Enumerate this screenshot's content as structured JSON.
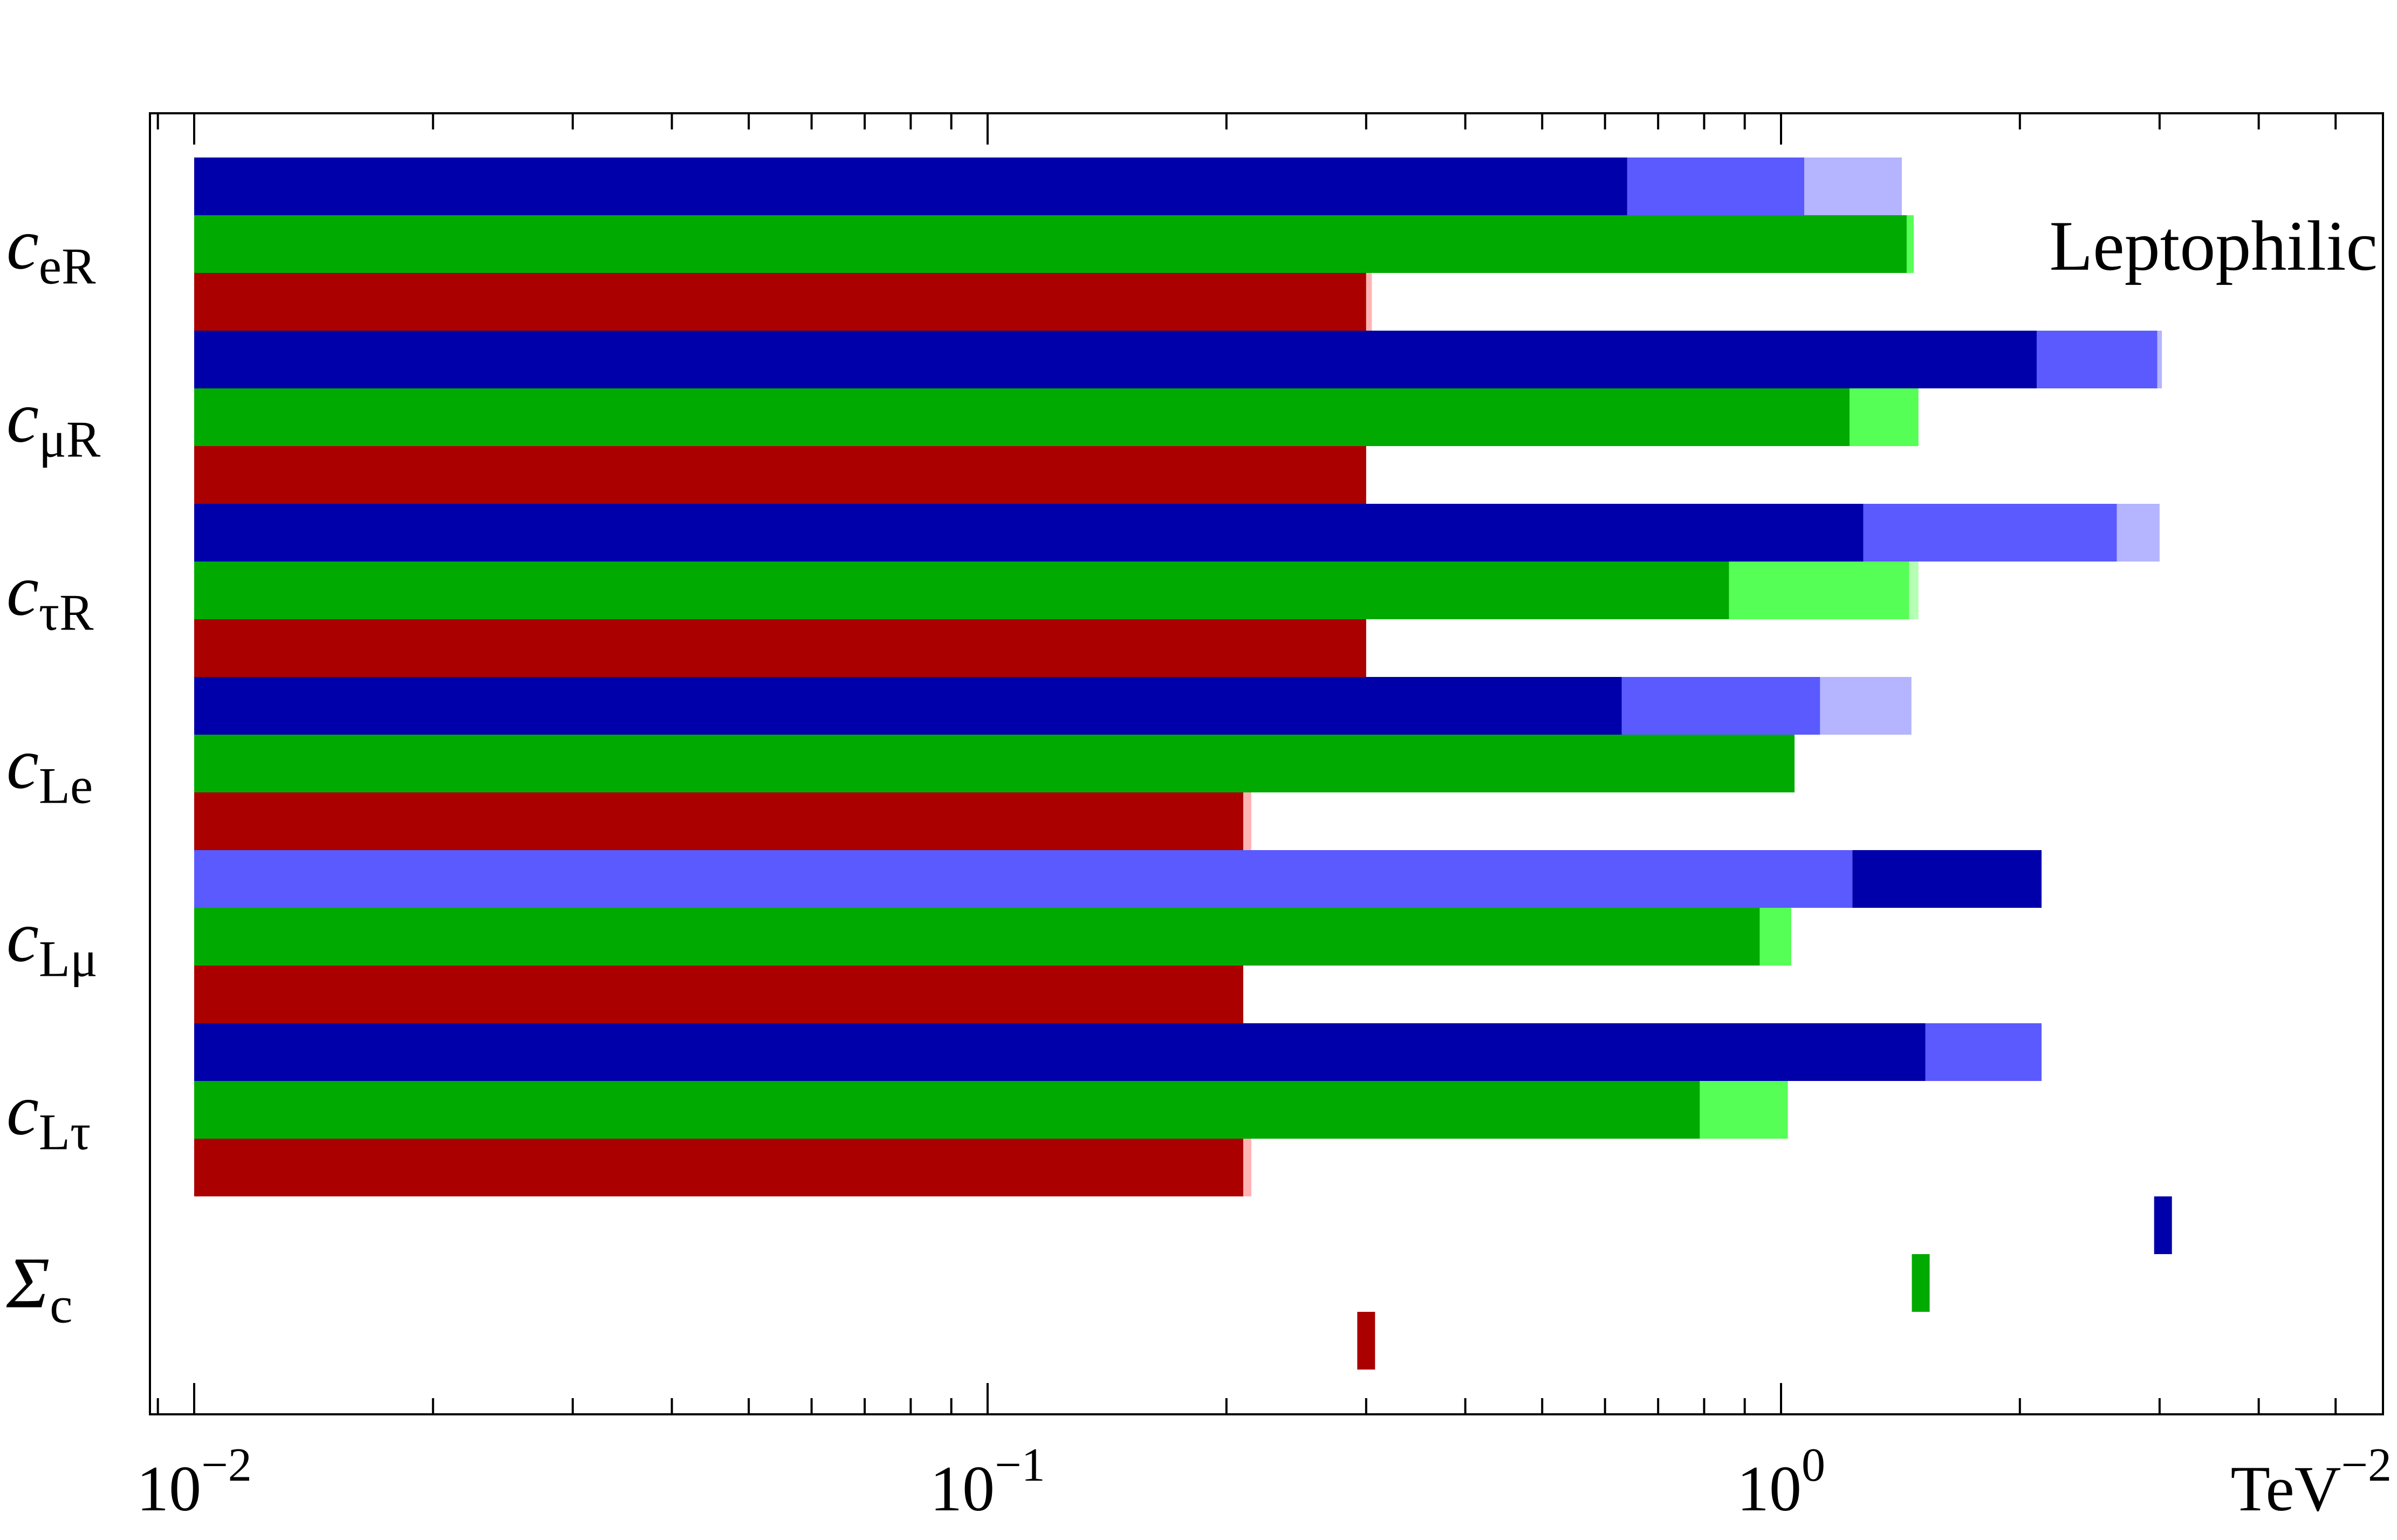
{
  "chart_data": {
    "type": "bar",
    "orientation": "horizontal",
    "annotation": "Leptophilic",
    "x_axis": {
      "scale": "log",
      "xlim": [
        0.009,
        13
      ],
      "bar_base": 0.01,
      "tick_labels": [
        {
          "value": 0.01,
          "base": "10",
          "exp": "−2"
        },
        {
          "value": 0.1,
          "base": "10",
          "exp": "−1"
        },
        {
          "value": 1,
          "base": "10",
          "exp": "0"
        }
      ],
      "unit": {
        "base": "TeV",
        "exp": "−2"
      }
    },
    "colors": {
      "blue_dark": "#0000aa",
      "blue_mid": "#5a5aff",
      "blue_light": "#b4b4ff",
      "green_dark": "#00aa00",
      "green_light": "#55ff55",
      "green_faint": "#b4ffb4",
      "red_dark": "#aa0000",
      "red_light": "#ffb4b4"
    },
    "rows": [
      {
        "label_main": "c",
        "label_sub": "eR",
        "bars": [
          {
            "series": "blue",
            "segments": [
              {
                "to": 0.64,
                "color": "#0000aa"
              },
              {
                "to": 1.07,
                "color": "#5a5aff"
              },
              {
                "to": 1.42,
                "color": "#b4b4ff"
              }
            ]
          },
          {
            "series": "green",
            "segments": [
              {
                "to": 1.44,
                "color": "#00aa00"
              },
              {
                "to": 1.47,
                "color": "#55ff55"
              }
            ]
          },
          {
            "series": "red",
            "segments": [
              {
                "to": 0.3,
                "color": "#aa0000"
              },
              {
                "to": 0.305,
                "color": "#ffb4b4"
              }
            ]
          }
        ]
      },
      {
        "label_main": "c",
        "label_sub": "μR",
        "bars": [
          {
            "series": "blue",
            "segments": [
              {
                "to": 2.1,
                "color": "#0000aa"
              },
              {
                "to": 2.98,
                "color": "#5a5aff"
              },
              {
                "to": 3.02,
                "color": "#b4b4ff"
              }
            ]
          },
          {
            "series": "green",
            "segments": [
              {
                "to": 1.22,
                "color": "#00aa00"
              },
              {
                "to": 1.49,
                "color": "#55ff55"
              }
            ]
          },
          {
            "series": "red",
            "segments": [
              {
                "to": 0.3,
                "color": "#aa0000"
              }
            ]
          }
        ]
      },
      {
        "label_main": "c",
        "label_sub": "τR",
        "bars": [
          {
            "series": "blue",
            "segments": [
              {
                "to": 1.27,
                "color": "#0000aa"
              },
              {
                "to": 2.65,
                "color": "#5a5aff"
              },
              {
                "to": 3.0,
                "color": "#b4b4ff"
              }
            ]
          },
          {
            "series": "green",
            "segments": [
              {
                "to": 0.86,
                "color": "#00aa00"
              },
              {
                "to": 1.45,
                "color": "#55ff55"
              },
              {
                "to": 1.49,
                "color": "#b4ffb4"
              }
            ]
          },
          {
            "series": "red",
            "segments": [
              {
                "to": 0.3,
                "color": "#aa0000"
              }
            ]
          }
        ]
      },
      {
        "label_main": "c",
        "label_sub": "Le",
        "bars": [
          {
            "series": "blue",
            "segments": [
              {
                "to": 0.63,
                "color": "#0000aa"
              },
              {
                "to": 1.12,
                "color": "#5a5aff"
              },
              {
                "to": 1.46,
                "color": "#b4b4ff"
              }
            ]
          },
          {
            "series": "green",
            "segments": [
              {
                "to": 1.04,
                "color": "#00aa00"
              }
            ]
          },
          {
            "series": "red",
            "segments": [
              {
                "to": 0.21,
                "color": "#aa0000"
              },
              {
                "to": 0.215,
                "color": "#ffb4b4"
              }
            ]
          }
        ]
      },
      {
        "label_main": "c",
        "label_sub": "Lμ",
        "bars": [
          {
            "series": "blue",
            "segments": [
              {
                "to": 1.23,
                "color": "#5a5aff"
              },
              {
                "to": 2.13,
                "color": "#0000aa"
              }
            ]
          },
          {
            "series": "green",
            "segments": [
              {
                "to": 0.94,
                "color": "#00aa00"
              },
              {
                "to": 1.03,
                "color": "#55ff55"
              }
            ]
          },
          {
            "series": "red",
            "segments": [
              {
                "to": 0.21,
                "color": "#aa0000"
              }
            ]
          }
        ]
      },
      {
        "label_main": "c",
        "label_sub": "Lτ",
        "bars": [
          {
            "series": "blue",
            "segments": [
              {
                "to": 1.52,
                "color": "#0000aa"
              },
              {
                "to": 2.13,
                "color": "#5a5aff"
              }
            ]
          },
          {
            "series": "green",
            "segments": [
              {
                "to": 0.79,
                "color": "#00aa00"
              },
              {
                "to": 1.02,
                "color": "#55ff55"
              }
            ]
          },
          {
            "series": "red",
            "segments": [
              {
                "to": 0.21,
                "color": "#aa0000"
              },
              {
                "to": 0.215,
                "color": "#ffb4b4"
              }
            ]
          }
        ]
      }
    ],
    "sum_row": {
      "label_main": "Σ",
      "label_sub": "c",
      "markers": [
        {
          "series": "blue",
          "value": 3.03,
          "color": "#0000aa"
        },
        {
          "series": "green",
          "value": 1.5,
          "color": "#00aa00"
        },
        {
          "series": "red",
          "value": 0.3,
          "color": "#aa0000"
        }
      ]
    }
  }
}
